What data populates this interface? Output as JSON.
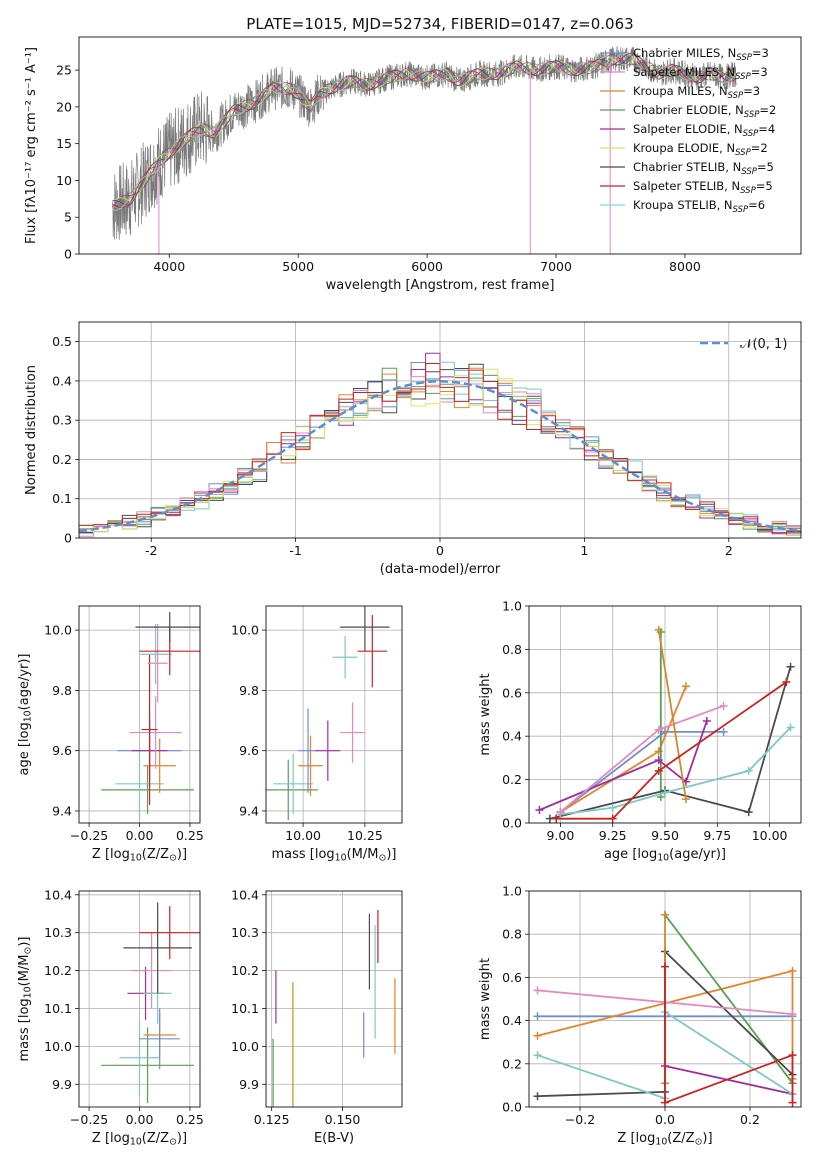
{
  "figure": {
    "title": "PLATE=1015, MJD=52734, FIBERID=0147, z=0.063"
  },
  "model_colors": [
    "#6c8fd6",
    "#e7832a",
    "#5a9f54",
    "#a12c9e",
    "#4b4b4b",
    "#7ec8c2",
    "#e28ac0",
    "#d08a2a",
    "#cc2222",
    "#8a8a8a"
  ],
  "chart_data": [
    {
      "id": "spectrum",
      "type": "line",
      "xlabel": "wavelength [Angstrom, rest frame]",
      "ylabel": "Flux [fλ10⁻¹⁷ erg cm⁻² s⁻¹ A⁻¹]",
      "xlim": [
        3300,
        8900
      ],
      "ylim": [
        0,
        29.5
      ],
      "xticks": [
        4000,
        5000,
        6000,
        7000,
        8000
      ],
      "yticks": [
        0,
        5,
        10,
        15,
        20,
        25
      ],
      "legend_position": "right",
      "observed": {
        "x": [
          3560,
          3700,
          3850,
          3950,
          4050,
          4150,
          4250,
          4350,
          4500,
          4650,
          4800,
          4950,
          5100,
          5150,
          5250,
          5400,
          5550,
          5700,
          5850,
          6000,
          6150,
          6250,
          6400,
          6550,
          6700,
          6850,
          7000,
          7150,
          7300,
          7450,
          7600,
          7700,
          7800,
          7900,
          8000,
          8100,
          8200,
          8300,
          8400
        ],
        "y": [
          6.5,
          7.5,
          11.0,
          13.0,
          14.5,
          16.0,
          17.0,
          16.5,
          19.5,
          20.5,
          22.5,
          22.5,
          20.0,
          21.5,
          22.5,
          23.5,
          23.0,
          24.0,
          24.5,
          24.0,
          24.5,
          23.5,
          24.5,
          24.5,
          25.5,
          25.0,
          25.5,
          25.0,
          25.5,
          26.5,
          26.5,
          25.5,
          24.5,
          25.0,
          24.5,
          24.0,
          24.5,
          24.0,
          24.5
        ]
      },
      "series": [
        {
          "name": "Chabrier MILES, N$_{SSP}$=3"
        },
        {
          "name": "Salpeter MILES, N$_{SSP}$=3"
        },
        {
          "name": "Kroupa MILES, N$_{SSP}$=3"
        },
        {
          "name": "Chabrier ELODIE, N$_{SSP}$=2"
        },
        {
          "name": "Salpeter ELODIE, N$_{SSP}$=4"
        },
        {
          "name": "Kroupa ELODIE, N$_{SSP}$=2"
        },
        {
          "name": "Chabrier STELIB, N$_{SSP}$=5"
        },
        {
          "name": "Salpeter STELIB, N$_{SSP}$=5"
        },
        {
          "name": "Kroupa STELIB, N$_{SSP}$=6"
        }
      ],
      "drops": [
        {
          "x": 3920,
          "series": 1
        },
        {
          "x": 6800,
          "series": 1
        },
        {
          "x": 7420,
          "series": 1
        }
      ]
    },
    {
      "id": "residuals",
      "type": "histogram",
      "xlabel": "(data-model)/error",
      "ylabel": "Normed distribution",
      "xlim": [
        -2.5,
        2.5
      ],
      "ylim": [
        0,
        0.55
      ],
      "xticks": [
        -2,
        -1,
        0,
        1,
        2
      ],
      "yticks": [
        0.0,
        0.1,
        0.2,
        0.3,
        0.4,
        0.5
      ],
      "legend_position": "top-right",
      "legend_label": "𝒩(0, 1)",
      "bin_width": 0.1,
      "x_start": -2.5
    },
    {
      "id": "age_vs_Z",
      "type": "scatter",
      "xlabel": "Z [log₁₀(Z/Z⊙)]",
      "ylabel": "age  [log₁₀(age/yr)]",
      "xlim": [
        -0.3,
        0.3
      ],
      "ylim": [
        9.36,
        10.08
      ],
      "xticks": [
        -0.25,
        0.0,
        0.25
      ],
      "xticklabels": [
        "−0.25",
        "0.00",
        "0.25"
      ],
      "yticks": [
        9.4,
        9.6,
        9.8,
        10.0
      ],
      "yticklabels": [
        "9.4",
        "9.6",
        "9.8",
        "10.0"
      ],
      "points": [
        {
          "x": 0.04,
          "y": 9.47,
          "xerr": 0.23,
          "yerr": 0.08,
          "c": 2
        },
        {
          "x": 0.0,
          "y": 9.49,
          "xerr": 0.12,
          "yerr": 0.12,
          "c": 5
        },
        {
          "x": 0.1,
          "y": 9.55,
          "xerr": 0.08,
          "yerr": 0.09,
          "c": 1
        },
        {
          "x": 0.05,
          "y": 9.6,
          "xerr": 0.16,
          "yerr": 0.12,
          "c": 0
        },
        {
          "x": 0.05,
          "y": 9.6,
          "xerr": 0.09,
          "yerr": 0.1,
          "c": 3
        },
        {
          "x": 0.08,
          "y": 9.66,
          "xerr": 0.13,
          "yerr": 0.12,
          "c": 6
        },
        {
          "x": 0.05,
          "y": 9.67,
          "xerr": 0.04,
          "yerr": 0.25,
          "c": 8
        },
        {
          "x": 0.09,
          "y": 9.89,
          "xerr": 0.05,
          "yerr": 0.13,
          "c": 6
        },
        {
          "x": 0.08,
          "y": 9.92,
          "xerr": 0.08,
          "yerr": 0.1,
          "c": 5
        },
        {
          "x": 0.15,
          "y": 9.93,
          "xerr": 0.15,
          "yerr": 0.08,
          "c": 8
        },
        {
          "x": 0.15,
          "y": 10.01,
          "xerr": 0.17,
          "yerr": 0.05,
          "c": 4
        }
      ]
    },
    {
      "id": "age_vs_mass",
      "type": "scatter",
      "xlabel": "mass [log₁₀(M/M⊙)]",
      "ylabel": "",
      "xlim": [
        9.85,
        10.4
      ],
      "ylim": [
        9.36,
        10.08
      ],
      "xticks": [
        10.0,
        10.25
      ],
      "xticklabels": [
        "10.00",
        "10.25"
      ],
      "yticks": [
        9.4,
        9.6,
        9.8,
        10.0
      ],
      "yticklabels": [
        "9.4",
        "9.6",
        "9.8",
        "10.0"
      ],
      "points": [
        {
          "x": 9.94,
          "y": 9.47,
          "xerr": 0.12,
          "yerr": 0.1,
          "c": 2
        },
        {
          "x": 9.96,
          "y": 9.49,
          "xerr": 0.08,
          "yerr": 0.1,
          "c": 5
        },
        {
          "x": 10.03,
          "y": 9.55,
          "xerr": 0.05,
          "yerr": 0.1,
          "c": 1
        },
        {
          "x": 10.02,
          "y": 9.6,
          "xerr": 0.04,
          "yerr": 0.14,
          "c": 0
        },
        {
          "x": 10.1,
          "y": 9.6,
          "xerr": 0.05,
          "yerr": 0.1,
          "c": 3
        },
        {
          "x": 10.2,
          "y": 9.66,
          "xerr": 0.05,
          "yerr": 0.1,
          "c": 6
        },
        {
          "x": 10.17,
          "y": 9.91,
          "xerr": 0.05,
          "yerr": 0.07,
          "c": 5
        },
        {
          "x": 10.28,
          "y": 9.93,
          "xerr": 0.06,
          "yerr": 0.12,
          "c": 8
        },
        {
          "x": 10.25,
          "y": 10.01,
          "xerr": 0.1,
          "yerr": 0.08,
          "c": 4
        }
      ]
    },
    {
      "id": "weight_vs_age",
      "type": "line",
      "xlabel": "age  [log₁₀(age/yr)]",
      "ylabel": "mass weight",
      "xlim": [
        8.85,
        10.15
      ],
      "ylim": [
        0.0,
        1.0
      ],
      "xticks": [
        9.0,
        9.25,
        9.5,
        9.75,
        10.0
      ],
      "xticklabels": [
        "9.00",
        "9.25",
        "9.50",
        "9.75",
        "10.00"
      ],
      "yticks": [
        0.0,
        0.2,
        0.4,
        0.6,
        0.8,
        1.0
      ],
      "yticklabels": [
        "0.0",
        "0.2",
        "0.4",
        "0.6",
        "0.8",
        "1.0"
      ],
      "series": [
        {
          "c": 0,
          "x": [
            9.0,
            9.5,
            9.78
          ],
          "y": [
            0.05,
            0.42,
            0.42
          ]
        },
        {
          "c": 1,
          "x": [
            9.0,
            9.47,
            9.6
          ],
          "y": [
            0.05,
            0.33,
            0.63
          ]
        },
        {
          "c": 2,
          "x": [
            9.48,
            9.48
          ],
          "y": [
            0.12,
            0.88
          ]
        },
        {
          "c": 3,
          "x": [
            8.9,
            9.47,
            9.6,
            9.7
          ],
          "y": [
            0.06,
            0.29,
            0.19,
            0.47
          ]
        },
        {
          "c": 4,
          "x": [
            8.95,
            9.5,
            9.9,
            10.1
          ],
          "y": [
            0.02,
            0.15,
            0.05,
            0.72
          ]
        },
        {
          "c": 5,
          "x": [
            9.0,
            9.25,
            9.5,
            9.9,
            10.1
          ],
          "y": [
            0.04,
            0.07,
            0.14,
            0.24,
            0.44
          ]
        },
        {
          "c": 6,
          "x": [
            9.0,
            9.47,
            9.78
          ],
          "y": [
            0.05,
            0.43,
            0.54
          ]
        },
        {
          "c": 7,
          "x": [
            9.47,
            9.6
          ],
          "y": [
            0.89,
            0.11
          ]
        },
        {
          "c": 8,
          "x": [
            8.98,
            9.25,
            9.47,
            10.08
          ],
          "y": [
            0.02,
            0.02,
            0.24,
            0.65
          ]
        }
      ]
    },
    {
      "id": "mass_vs_Z",
      "type": "scatter",
      "xlabel": "Z [log₁₀(Z/Z⊙)]",
      "ylabel": "mass [log₁₀(M/M⊙)]",
      "xlim": [
        -0.3,
        0.3
      ],
      "ylim": [
        9.84,
        10.41
      ],
      "xticks": [
        -0.25,
        0.0,
        0.25
      ],
      "xticklabels": [
        "−0.25",
        "0.00",
        "0.25"
      ],
      "yticks": [
        9.9,
        10.0,
        10.1,
        10.2,
        10.3,
        10.4
      ],
      "yticklabels": [
        "9.9",
        "10.0",
        "10.1",
        "10.2",
        "10.3",
        "10.4"
      ],
      "points": [
        {
          "x": 0.04,
          "y": 9.95,
          "xerr": 0.23,
          "yerr": 0.1,
          "c": 2
        },
        {
          "x": 0.0,
          "y": 9.97,
          "xerr": 0.1,
          "yerr": 0.1,
          "c": 5
        },
        {
          "x": 0.1,
          "y": 10.03,
          "xerr": 0.08,
          "yerr": 0.06,
          "c": 1
        },
        {
          "x": 0.1,
          "y": 10.02,
          "xerr": 0.1,
          "yerr": 0.08,
          "c": 0
        },
        {
          "x": 0.03,
          "y": 10.14,
          "xerr": 0.09,
          "yerr": 0.07,
          "c": 3
        },
        {
          "x": 0.06,
          "y": 10.2,
          "xerr": 0.1,
          "yerr": 0.1,
          "c": 6
        },
        {
          "x": 0.09,
          "y": 10.14,
          "xerr": 0.07,
          "yerr": 0.08,
          "c": 5
        },
        {
          "x": 0.09,
          "y": 10.26,
          "xerr": 0.17,
          "yerr": 0.12,
          "c": 4
        },
        {
          "x": 0.15,
          "y": 10.3,
          "xerr": 0.15,
          "yerr": 0.07,
          "c": 8
        }
      ]
    },
    {
      "id": "mass_vs_ebv",
      "type": "scatter",
      "xlabel": "E(B-V)",
      "ylabel": "",
      "xlim": [
        0.123,
        0.171
      ],
      "ylim": [
        9.84,
        10.41
      ],
      "xticks": [
        0.125,
        0.15
      ],
      "xticklabels": [
        "0.125",
        "0.150"
      ],
      "yticks": [
        9.9,
        10.0,
        10.1,
        10.2,
        10.3,
        10.4
      ],
      "yticklabels": [
        "9.9",
        "10.0",
        "10.1",
        "10.2",
        "10.3",
        "10.4"
      ],
      "points": [
        {
          "x": 0.1255,
          "y": 9.93,
          "xerr": 0.0,
          "yerr": 0.09,
          "c": 2
        },
        {
          "x": 0.1265,
          "y": 10.13,
          "xerr": 0.0,
          "yerr": 0.07,
          "c": 3
        },
        {
          "x": 0.1325,
          "y": 10.0,
          "xerr": 0.0,
          "yerr": 0.17,
          "c": 7
        },
        {
          "x": 0.1575,
          "y": 10.03,
          "xerr": 0.0,
          "yerr": 0.06,
          "c": 0
        },
        {
          "x": 0.1595,
          "y": 10.25,
          "xerr": 0.0,
          "yerr": 0.1,
          "c": 4
        },
        {
          "x": 0.1615,
          "y": 10.17,
          "xerr": 0.0,
          "yerr": 0.15,
          "c": 5
        },
        {
          "x": 0.1625,
          "y": 10.29,
          "xerr": 0.0,
          "yerr": 0.07,
          "c": 8
        },
        {
          "x": 0.1685,
          "y": 10.08,
          "xerr": 0.0,
          "yerr": 0.1,
          "c": 1
        }
      ]
    },
    {
      "id": "weight_vs_Z",
      "type": "line",
      "xlabel": "Z [log₁₀(Z/Z⊙)]",
      "ylabel": "mass weight",
      "xlim": [
        -0.32,
        0.32
      ],
      "ylim": [
        0.0,
        1.0
      ],
      "xticks": [
        -0.2,
        0.0,
        0.2
      ],
      "xticklabels": [
        "−0.2",
        "0.0",
        "0.2"
      ],
      "yticks": [
        0.0,
        0.2,
        0.4,
        0.6,
        0.8,
        1.0
      ],
      "yticklabels": [
        "0.0",
        "0.2",
        "0.4",
        "0.6",
        "0.8",
        "1.0"
      ],
      "series": [
        {
          "c": 0,
          "x": [
            -0.3,
            0.3
          ],
          "y": [
            0.42,
            0.42
          ]
        },
        {
          "c": 1,
          "x": [
            -0.3,
            0.3,
            0.3
          ],
          "y": [
            0.33,
            0.63,
            0.13
          ]
        },
        {
          "c": 2,
          "x": [
            0.0,
            0.3
          ],
          "y": [
            0.89,
            0.11
          ]
        },
        {
          "c": 3,
          "x": [
            0.0,
            0.3
          ],
          "y": [
            0.19,
            0.06
          ]
        },
        {
          "c": 4,
          "x": [
            -0.3,
            0.0,
            0.0,
            0.3
          ],
          "y": [
            0.05,
            0.07,
            0.72,
            0.15
          ]
        },
        {
          "c": 5,
          "x": [
            -0.3,
            0.0,
            0.0,
            0.3
          ],
          "y": [
            0.24,
            0.04,
            0.44,
            0.06
          ]
        },
        {
          "c": 6,
          "x": [
            -0.3,
            0.3
          ],
          "y": [
            0.54,
            0.43
          ]
        },
        {
          "c": 7,
          "x": [
            0.0,
            0.0
          ],
          "y": [
            0.89,
            0.11
          ]
        },
        {
          "c": 8,
          "x": [
            0.0,
            0.0,
            0.3,
            0.3
          ],
          "y": [
            0.65,
            0.02,
            0.24,
            0.02
          ]
        }
      ]
    }
  ]
}
